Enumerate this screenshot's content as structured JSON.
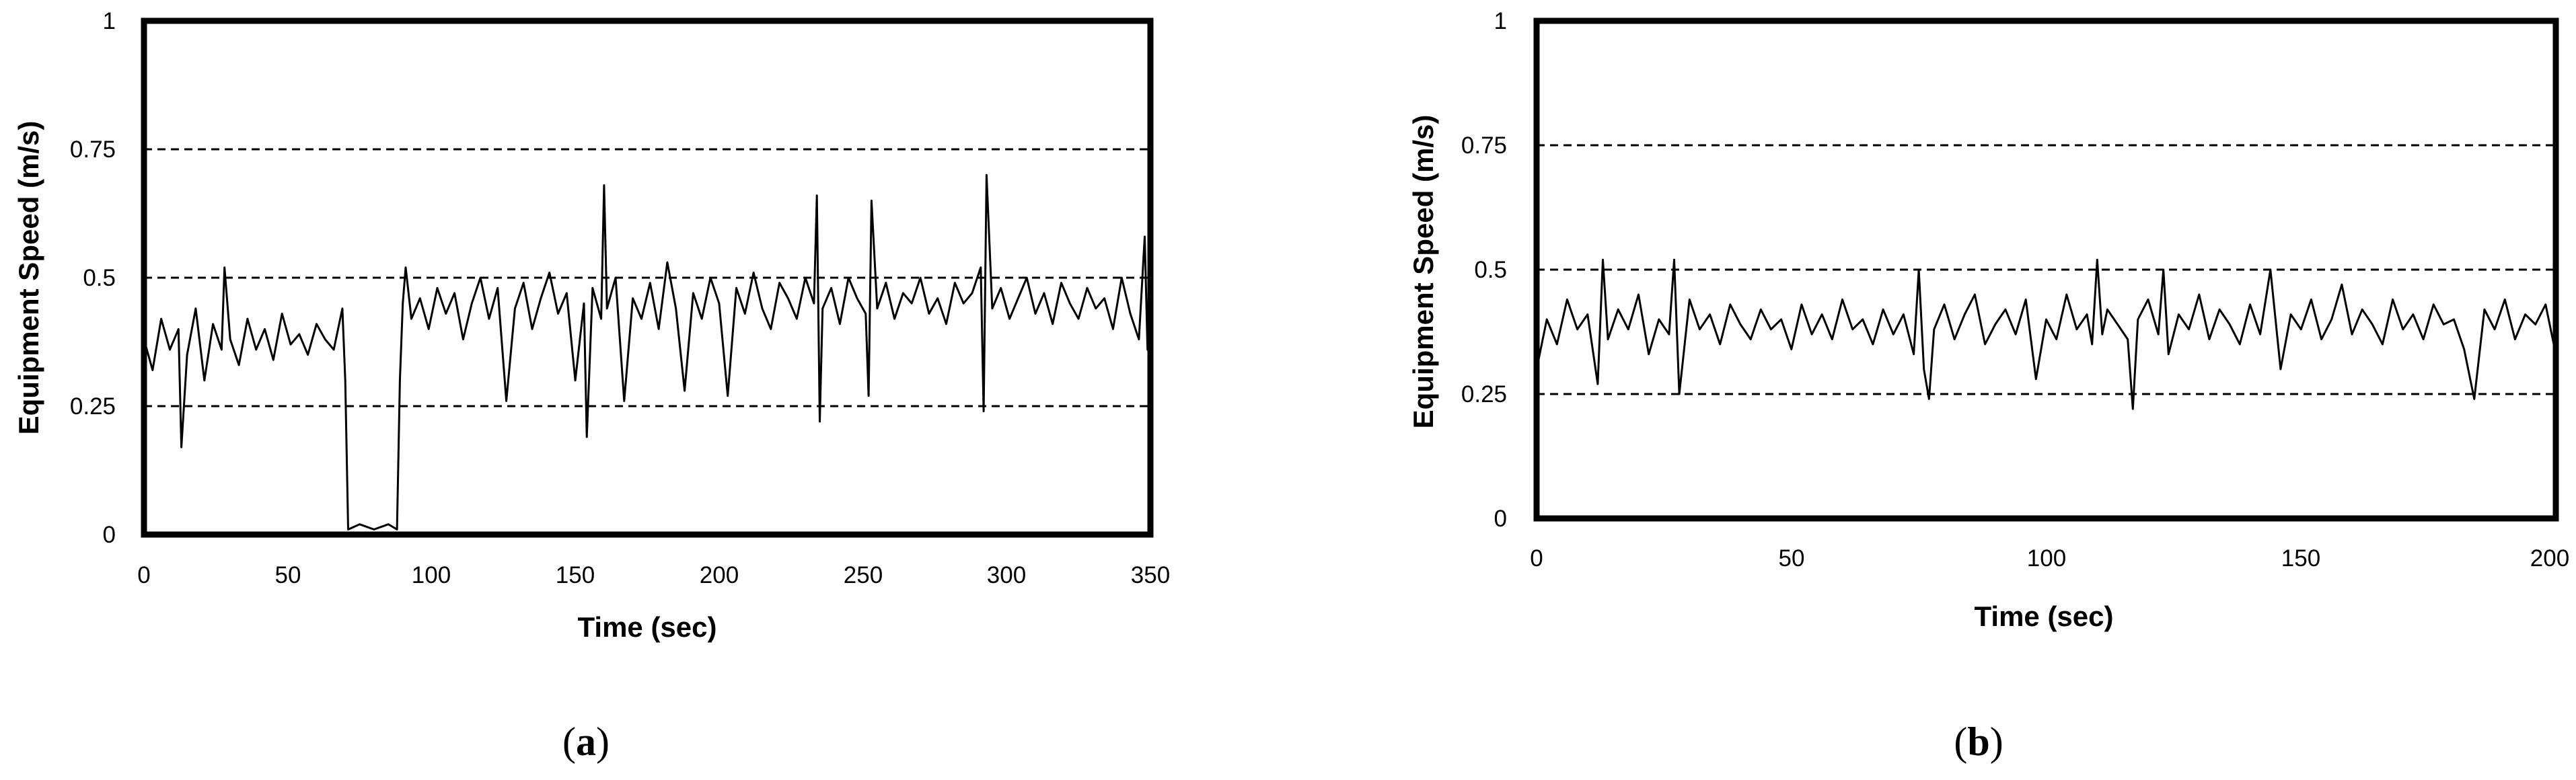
{
  "chart_data": [
    {
      "type": "line",
      "panel_label": "a",
      "xlabel": "Time (sec)",
      "ylabel": "Equipment Speed (m/s)",
      "xlim": [
        0,
        350
      ],
      "ylim": [
        0,
        1
      ],
      "xticks": [
        "0",
        "50",
        "100",
        "150",
        "200",
        "250",
        "300",
        "350"
      ],
      "yticks": [
        "0",
        "0.25",
        "0.5",
        "0.75",
        "1"
      ],
      "reference_lines": [
        0.25,
        0.5,
        0.75
      ],
      "grid": false,
      "series": [
        {
          "color": "#000000",
          "x": [
            0,
            3,
            6,
            9,
            12,
            13,
            15,
            18,
            21,
            24,
            27,
            28,
            30,
            33,
            36,
            39,
            42,
            45,
            48,
            51,
            54,
            57,
            60,
            63,
            66,
            69,
            70,
            71,
            75,
            80,
            85,
            88,
            89,
            90,
            91,
            93,
            96,
            99,
            102,
            105,
            108,
            111,
            114,
            117,
            120,
            123,
            126,
            129,
            132,
            135,
            138,
            141,
            144,
            147,
            150,
            153,
            154,
            156,
            159,
            160,
            161,
            164,
            167,
            170,
            173,
            176,
            179,
            182,
            185,
            188,
            191,
            194,
            197,
            200,
            203,
            206,
            209,
            212,
            215,
            218,
            221,
            224,
            227,
            230,
            233,
            234,
            235,
            236,
            239,
            242,
            245,
            248,
            251,
            252,
            253,
            255,
            258,
            261,
            264,
            267,
            270,
            273,
            276,
            279,
            282,
            285,
            288,
            291,
            292,
            293,
            295,
            298,
            301,
            304,
            307,
            310,
            313,
            316,
            319,
            322,
            325,
            328,
            331,
            334,
            337,
            340,
            343,
            346,
            348,
            349,
            350
          ],
          "y": [
            0.38,
            0.32,
            0.42,
            0.36,
            0.4,
            0.17,
            0.35,
            0.44,
            0.3,
            0.41,
            0.36,
            0.52,
            0.38,
            0.33,
            0.42,
            0.36,
            0.4,
            0.34,
            0.43,
            0.37,
            0.39,
            0.35,
            0.41,
            0.38,
            0.36,
            0.44,
            0.3,
            0.01,
            0.02,
            0.01,
            0.02,
            0.01,
            0.3,
            0.45,
            0.52,
            0.42,
            0.46,
            0.4,
            0.48,
            0.43,
            0.47,
            0.38,
            0.45,
            0.5,
            0.42,
            0.48,
            0.26,
            0.44,
            0.49,
            0.4,
            0.46,
            0.51,
            0.43,
            0.47,
            0.3,
            0.45,
            0.19,
            0.48,
            0.42,
            0.68,
            0.44,
            0.5,
            0.26,
            0.46,
            0.42,
            0.49,
            0.4,
            0.53,
            0.44,
            0.28,
            0.47,
            0.42,
            0.5,
            0.45,
            0.27,
            0.48,
            0.43,
            0.51,
            0.44,
            0.4,
            0.49,
            0.46,
            0.42,
            0.5,
            0.45,
            0.66,
            0.22,
            0.44,
            0.48,
            0.41,
            0.5,
            0.46,
            0.43,
            0.27,
            0.65,
            0.44,
            0.49,
            0.42,
            0.47,
            0.45,
            0.5,
            0.43,
            0.46,
            0.41,
            0.49,
            0.45,
            0.47,
            0.52,
            0.24,
            0.7,
            0.44,
            0.48,
            0.42,
            0.46,
            0.5,
            0.43,
            0.47,
            0.41,
            0.49,
            0.45,
            0.42,
            0.48,
            0.44,
            0.46,
            0.4,
            0.5,
            0.43,
            0.38,
            0.58,
            0.36,
            0.45
          ]
        }
      ]
    },
    {
      "type": "line",
      "panel_label": "b",
      "xlabel": "Time (sec)",
      "ylabel": "Equipment Speed (m/s)",
      "xlim": [
        0,
        200
      ],
      "ylim": [
        0,
        1
      ],
      "xticks": [
        "0",
        "50",
        "100",
        "150",
        "200"
      ],
      "yticks": [
        "0",
        "0.25",
        "0.5",
        "0.75",
        "1"
      ],
      "reference_lines": [
        0.25,
        0.5,
        0.75
      ],
      "grid": false,
      "series": [
        {
          "color": "#000000",
          "x": [
            0,
            2,
            4,
            6,
            8,
            10,
            12,
            13,
            14,
            16,
            18,
            20,
            22,
            24,
            26,
            27,
            28,
            30,
            32,
            34,
            36,
            38,
            40,
            42,
            44,
            46,
            48,
            50,
            52,
            54,
            56,
            58,
            60,
            62,
            64,
            66,
            68,
            70,
            72,
            74,
            75,
            76,
            77,
            78,
            80,
            82,
            84,
            86,
            88,
            90,
            92,
            94,
            96,
            98,
            100,
            102,
            104,
            106,
            108,
            109,
            110,
            111,
            112,
            114,
            116,
            117,
            118,
            120,
            122,
            123,
            124,
            126,
            128,
            130,
            132,
            134,
            136,
            138,
            140,
            142,
            144,
            146,
            148,
            150,
            152,
            154,
            156,
            158,
            160,
            162,
            164,
            166,
            168,
            170,
            172,
            174,
            176,
            178,
            180,
            182,
            184,
            186,
            188,
            190,
            192,
            194,
            196,
            198,
            200
          ],
          "y": [
            0.3,
            0.4,
            0.35,
            0.44,
            0.38,
            0.41,
            0.27,
            0.52,
            0.36,
            0.42,
            0.38,
            0.45,
            0.33,
            0.4,
            0.37,
            0.52,
            0.25,
            0.44,
            0.38,
            0.41,
            0.35,
            0.43,
            0.39,
            0.36,
            0.42,
            0.38,
            0.4,
            0.34,
            0.43,
            0.37,
            0.41,
            0.36,
            0.44,
            0.38,
            0.4,
            0.35,
            0.42,
            0.37,
            0.41,
            0.33,
            0.5,
            0.3,
            0.24,
            0.38,
            0.43,
            0.36,
            0.41,
            0.45,
            0.35,
            0.39,
            0.42,
            0.37,
            0.44,
            0.28,
            0.4,
            0.36,
            0.45,
            0.38,
            0.41,
            0.35,
            0.52,
            0.37,
            0.42,
            0.39,
            0.36,
            0.22,
            0.4,
            0.44,
            0.37,
            0.5,
            0.33,
            0.41,
            0.38,
            0.45,
            0.36,
            0.42,
            0.39,
            0.35,
            0.43,
            0.37,
            0.5,
            0.3,
            0.41,
            0.38,
            0.44,
            0.36,
            0.4,
            0.47,
            0.37,
            0.42,
            0.39,
            0.35,
            0.44,
            0.38,
            0.41,
            0.36,
            0.43,
            0.39,
            0.4,
            0.34,
            0.24,
            0.42,
            0.38,
            0.44,
            0.36,
            0.41,
            0.39,
            0.43,
            0.33
          ]
        }
      ]
    }
  ]
}
